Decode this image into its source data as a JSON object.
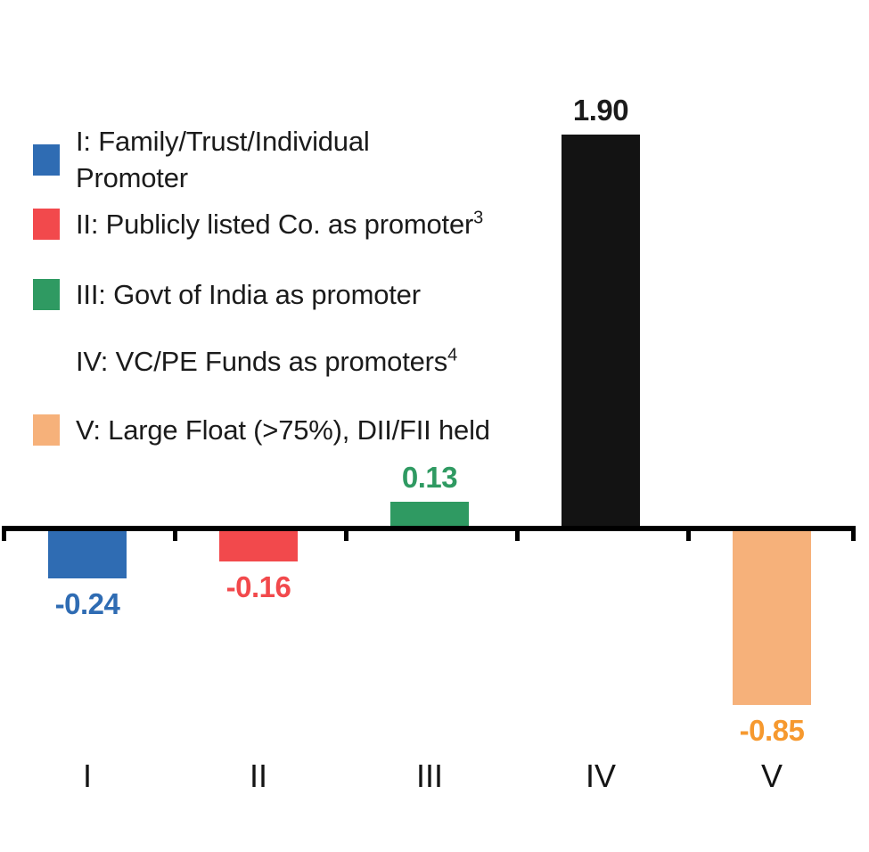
{
  "chart_data": {
    "type": "bar",
    "categories": [
      "I",
      "II",
      "III",
      "IV",
      "V"
    ],
    "values": [
      -0.24,
      -0.16,
      0.13,
      1.9,
      -0.85
    ],
    "value_labels": [
      "-0.24",
      "-0.16",
      "0.13",
      "1.90",
      "-0.85"
    ],
    "bar_colors": [
      "#2F6CB3",
      "#F2494C",
      "#2F9A62",
      "#131313",
      "#F6B17A"
    ],
    "value_label_colors": [
      "#2F6CB3",
      "#F2494C",
      "#2F9A62",
      "#1B1B1B",
      "#F6992F"
    ],
    "title": "",
    "xlabel": "",
    "ylabel": "",
    "ylim": [
      -1.0,
      2.0
    ],
    "grid": false,
    "axis_color": "#000000",
    "legend_position": "upper-left"
  },
  "legend": {
    "items": [
      {
        "label": "I: Family/Trust/Individual\nPromoter",
        "superscript": "",
        "color": "#2F6CB3",
        "swatch_visible": true
      },
      {
        "label": "II: Publicly listed Co. as promoter",
        "superscript": "3",
        "color": "#F2494C",
        "swatch_visible": true
      },
      {
        "label": "III: Govt of India as promoter",
        "superscript": "",
        "color": "#2F9A62",
        "swatch_visible": true
      },
      {
        "label": "IV: VC/PE Funds as promoters",
        "superscript": "4",
        "color": "",
        "swatch_visible": false
      },
      {
        "label": "V: Large Float (>75%), DII/FII held",
        "superscript": "",
        "color": "#F6B17A",
        "swatch_visible": true
      }
    ]
  }
}
